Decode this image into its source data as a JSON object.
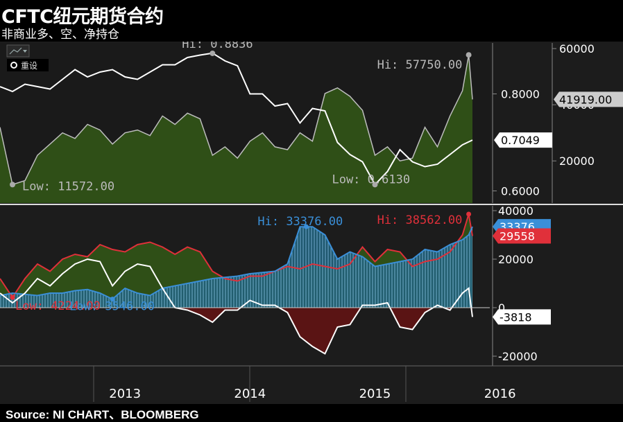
{
  "header": {
    "title": "CFTC纽元期货合约",
    "subtitle": "非商业多、空、净持仓"
  },
  "footer": {
    "source": "Source: NI CHART、BLOOMBERG"
  },
  "toolbar": {
    "reset_label": "重设"
  },
  "colors": {
    "background": "#1c1c1c",
    "price_line": "#ffffff",
    "upper_area_fill": "#2f4f17",
    "upper_area_stroke": "#bdbdbd",
    "long_fill": "#2f4f17",
    "long_line": "#e0303a",
    "short_fill": "#1f5f78",
    "short_line": "#3a8fd8",
    "net_pos_fill": "#2f4f17",
    "net_neg_fill": "#5a1414",
    "net_line": "#ffffff"
  },
  "chart_data": [
    {
      "type": "line",
      "panel": "upper",
      "x_ticks": [
        "2013",
        "2014",
        "2015",
        "2016"
      ],
      "series": [
        {
          "name": "",
          "axis": "left",
          "x": [
            2012.5,
            2012.6,
            2012.7,
            2012.8,
            2012.9,
            2013.0,
            2013.1,
            2013.2,
            2013.3,
            2013.4,
            2013.5,
            2013.6,
            2013.7,
            2013.8,
            2013.9,
            2014.0,
            2014.1,
            2014.2,
            2014.3,
            2014.4,
            2014.5,
            2014.6,
            2014.7,
            2014.8,
            2014.9,
            2015.0,
            2015.1,
            2015.2,
            2015.3,
            2015.4,
            2015.5,
            2015.6,
            2015.7,
            2015.8,
            2015.9,
            2016.0,
            2016.1,
            2016.2,
            2016.28
          ],
          "values": [
            0.815,
            0.805,
            0.82,
            0.815,
            0.81,
            0.83,
            0.85,
            0.835,
            0.845,
            0.85,
            0.835,
            0.83,
            0.845,
            0.86,
            0.86,
            0.875,
            0.88,
            0.884,
            0.868,
            0.858,
            0.8,
            0.8,
            0.775,
            0.78,
            0.74,
            0.77,
            0.765,
            0.7,
            0.675,
            0.66,
            0.613,
            0.64,
            0.685,
            0.66,
            0.65,
            0.655,
            0.675,
            0.695,
            0.7049
          ]
        },
        {
          "name": "",
          "axis": "right",
          "x": [
            2012.5,
            2012.6,
            2012.7,
            2012.8,
            2012.9,
            2013.0,
            2013.1,
            2013.2,
            2013.3,
            2013.4,
            2013.5,
            2013.6,
            2013.7,
            2013.8,
            2013.9,
            2014.0,
            2014.1,
            2014.2,
            2014.3,
            2014.4,
            2014.5,
            2014.6,
            2014.7,
            2014.8,
            2014.9,
            2015.0,
            2015.1,
            2015.2,
            2015.3,
            2015.4,
            2015.5,
            2015.6,
            2015.7,
            2015.8,
            2015.9,
            2016.0,
            2016.1,
            2016.2,
            2016.25,
            2016.28
          ],
          "values": [
            32000,
            11572,
            13000,
            22000,
            26000,
            30000,
            28000,
            33000,
            31000,
            26000,
            30000,
            31000,
            29000,
            36000,
            33000,
            37000,
            35000,
            22000,
            25000,
            21000,
            27000,
            30000,
            25000,
            24000,
            30000,
            27000,
            44000,
            46000,
            43000,
            38000,
            22000,
            25000,
            20000,
            21000,
            32000,
            25000,
            36000,
            45000,
            57750,
            41919
          ]
        }
      ],
      "left_axis": {
        "ticks": [
          0.6,
          0.8
        ],
        "tick_labels": [
          "0.6000",
          "0.8000"
        ],
        "range": [
          0.575,
          0.905
        ]
      },
      "right_axis": {
        "ticks": [
          20000,
          40000,
          60000
        ],
        "tick_labels": [
          "20000",
          "40000",
          "60000"
        ],
        "range": [
          5000,
          62000
        ]
      },
      "annotations": [
        {
          "text": "Hi: 0.8836",
          "series": 0,
          "x": 2014.2,
          "y": 0.8836
        },
        {
          "text": "Low: 0.6130",
          "series": 0,
          "x": 2015.5,
          "y": 0.613
        },
        {
          "text": "Hi: 57750.00",
          "series": 1,
          "x": 2016.25,
          "y": 57750
        },
        {
          "text": "Low: 11572.00",
          "series": 1,
          "x": 2012.6,
          "y": 11572
        }
      ],
      "last_value_labels": [
        {
          "text": "0.7049",
          "series": 0,
          "y": 0.7049
        },
        {
          "text": "41919.00",
          "series": 1,
          "y": 41919
        }
      ]
    },
    {
      "type": "area",
      "panel": "lower",
      "x_ticks": [
        "2013",
        "2014",
        "2015",
        "2016"
      ],
      "series": [
        {
          "name": "",
          "x": [
            2012.5,
            2012.6,
            2012.7,
            2012.8,
            2012.9,
            2013.0,
            2013.1,
            2013.2,
            2013.3,
            2013.4,
            2013.5,
            2013.6,
            2013.7,
            2013.8,
            2013.9,
            2014.0,
            2014.1,
            2014.2,
            2014.3,
            2014.4,
            2014.5,
            2014.6,
            2014.7,
            2014.8,
            2014.9,
            2015.0,
            2015.1,
            2015.2,
            2015.3,
            2015.4,
            2015.5,
            2015.6,
            2015.7,
            2015.8,
            2015.9,
            2016.0,
            2016.1,
            2016.2,
            2016.25,
            2016.28
          ],
          "values": [
            12000,
            4224,
            12000,
            18000,
            15000,
            20000,
            22000,
            21000,
            26000,
            24000,
            23000,
            26000,
            27000,
            25000,
            22000,
            25000,
            23000,
            15000,
            12000,
            11000,
            13000,
            13000,
            15000,
            17000,
            16000,
            18000,
            17000,
            16000,
            18000,
            25000,
            19000,
            24000,
            23000,
            17000,
            19000,
            20000,
            23000,
            30000,
            38562,
            29558
          ]
        },
        {
          "name": "",
          "x": [
            2012.5,
            2012.6,
            2012.7,
            2012.8,
            2012.9,
            2013.0,
            2013.1,
            2013.2,
            2013.3,
            2013.4,
            2013.5,
            2013.6,
            2013.7,
            2013.8,
            2013.9,
            2014.0,
            2014.1,
            2014.2,
            2014.3,
            2014.4,
            2014.5,
            2014.6,
            2014.7,
            2014.8,
            2014.9,
            2015.0,
            2015.1,
            2015.2,
            2015.3,
            2015.4,
            2015.5,
            2015.6,
            2015.7,
            2015.8,
            2015.9,
            2016.0,
            2016.1,
            2016.2,
            2016.25,
            2016.28
          ],
          "values": [
            5000,
            6000,
            5500,
            5000,
            6000,
            6000,
            7000,
            7500,
            6000,
            3546,
            8000,
            6000,
            5000,
            8000,
            9000,
            10000,
            11000,
            12000,
            12500,
            13000,
            14000,
            14500,
            15000,
            18000,
            33376,
            33376,
            30000,
            20000,
            23000,
            21000,
            17000,
            18000,
            19000,
            20000,
            24000,
            23000,
            26000,
            28000,
            30000,
            33376
          ]
        },
        {
          "name": "",
          "x": [
            2012.5,
            2012.6,
            2012.7,
            2012.8,
            2012.9,
            2013.0,
            2013.1,
            2013.2,
            2013.3,
            2013.4,
            2013.5,
            2013.6,
            2013.7,
            2013.8,
            2013.9,
            2014.0,
            2014.1,
            2014.2,
            2014.3,
            2014.4,
            2014.5,
            2014.6,
            2014.7,
            2014.8,
            2014.9,
            2015.0,
            2015.1,
            2015.2,
            2015.3,
            2015.4,
            2015.5,
            2015.6,
            2015.7,
            2015.8,
            2015.9,
            2016.0,
            2016.1,
            2016.2,
            2016.25,
            2016.28
          ],
          "values": [
            6000,
            2000,
            6000,
            12000,
            9000,
            14000,
            18000,
            20000,
            19000,
            9000,
            15000,
            18000,
            17000,
            8000,
            0,
            -1000,
            -3000,
            -6000,
            -1000,
            -1000,
            3000,
            1000,
            1000,
            -2000,
            -12000,
            -16000,
            -19000,
            -8000,
            -7000,
            1000,
            1000,
            2000,
            -8000,
            -9000,
            -2000,
            1000,
            -1000,
            6000,
            8000,
            -3818
          ]
        }
      ],
      "y_axis": {
        "ticks": [
          -20000,
          0,
          20000,
          40000
        ],
        "tick_labels": [
          "-20000",
          "0",
          "20000",
          "40000"
        ],
        "range": [
          -24000,
          42000
        ]
      },
      "annotations": [
        {
          "text": "Hi: 33376.00",
          "series": 1,
          "x": 2014.95,
          "y": 33376
        },
        {
          "text": "Hi: 38562.00",
          "series": 0,
          "x": 2016.25,
          "y": 38562
        },
        {
          "text": "Low: 4224.00",
          "series": 0,
          "x": 2012.6,
          "y": 4224
        },
        {
          "text": "Low: 3546.00",
          "series": 1,
          "x": 2013.4,
          "y": 3546
        }
      ],
      "last_value_labels": [
        {
          "text": "33376",
          "series": 1,
          "y": 33376
        },
        {
          "text": "29558",
          "series": 0,
          "y": 29558
        },
        {
          "text": "-3818",
          "series": 2,
          "y": -3818
        }
      ]
    }
  ]
}
